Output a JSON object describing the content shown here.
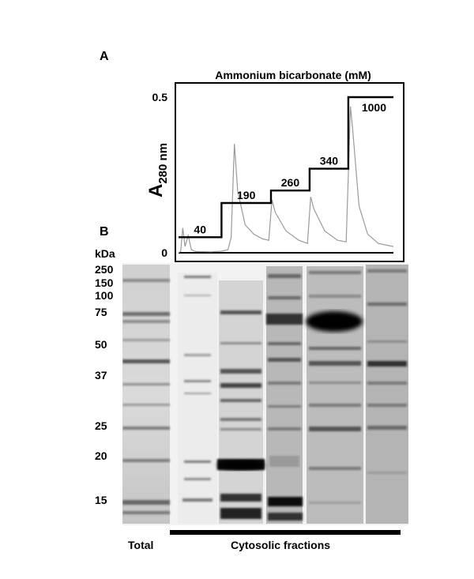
{
  "panel_a": {
    "letter": "A",
    "chart_data": {
      "type": "line",
      "title": "Ammonium bicarbonate (mM)",
      "ylabel_main": "A",
      "ylabel_sub": "280 nm",
      "y_ticks": [
        "0.5",
        "0"
      ],
      "ylim": [
        0,
        0.5
      ],
      "grid": false,
      "step_labels": [
        "40",
        "190",
        "260",
        "340",
        "1000"
      ],
      "step_concentrations_mM": [
        40,
        190,
        260,
        340,
        1000
      ],
      "series": [
        {
          "kind": "absorbance",
          "color": "#9a9a9a",
          "points": [
            [
              0,
              0.0
            ],
            [
              0.01,
              0.005
            ],
            [
              0.02,
              0.08
            ],
            [
              0.03,
              0.02
            ],
            [
              0.045,
              0.055
            ],
            [
              0.06,
              0.01
            ],
            [
              0.08,
              0.004
            ],
            [
              0.15,
              0.003
            ],
            [
              0.2,
              0.005
            ],
            [
              0.23,
              0.01
            ],
            [
              0.245,
              0.05
            ],
            [
              0.26,
              0.35
            ],
            [
              0.275,
              0.2
            ],
            [
              0.31,
              0.09
            ],
            [
              0.35,
              0.06
            ],
            [
              0.39,
              0.045
            ],
            [
              0.42,
              0.04
            ],
            [
              0.435,
              0.17
            ],
            [
              0.45,
              0.13
            ],
            [
              0.5,
              0.07
            ],
            [
              0.56,
              0.04
            ],
            [
              0.6,
              0.03
            ],
            [
              0.615,
              0.18
            ],
            [
              0.63,
              0.14
            ],
            [
              0.68,
              0.07
            ],
            [
              0.74,
              0.04
            ],
            [
              0.78,
              0.035
            ],
            [
              0.79,
              0.25
            ],
            [
              0.8,
              0.47
            ],
            [
              0.81,
              0.4
            ],
            [
              0.84,
              0.15
            ],
            [
              0.88,
              0.06
            ],
            [
              0.93,
              0.03
            ],
            [
              1,
              0.02
            ]
          ]
        },
        {
          "kind": "gradient",
          "color": "#000000",
          "points": [
            [
              0,
              0.05
            ],
            [
              0.2,
              0.05
            ],
            [
              0.2,
              0.16
            ],
            [
              0.43,
              0.16
            ],
            [
              0.43,
              0.2
            ],
            [
              0.61,
              0.2
            ],
            [
              0.61,
              0.27
            ],
            [
              0.79,
              0.27
            ],
            [
              0.79,
              0.5
            ],
            [
              1,
              0.5
            ]
          ]
        }
      ]
    }
  },
  "panel_b": {
    "letter": "B",
    "unit": "kDa",
    "markers": [
      "250",
      "150",
      "100",
      "75",
      "50",
      "37",
      "25",
      "20",
      "15"
    ],
    "label_total": "Total",
    "label_cytosolic": "Cytosolic fractions"
  }
}
